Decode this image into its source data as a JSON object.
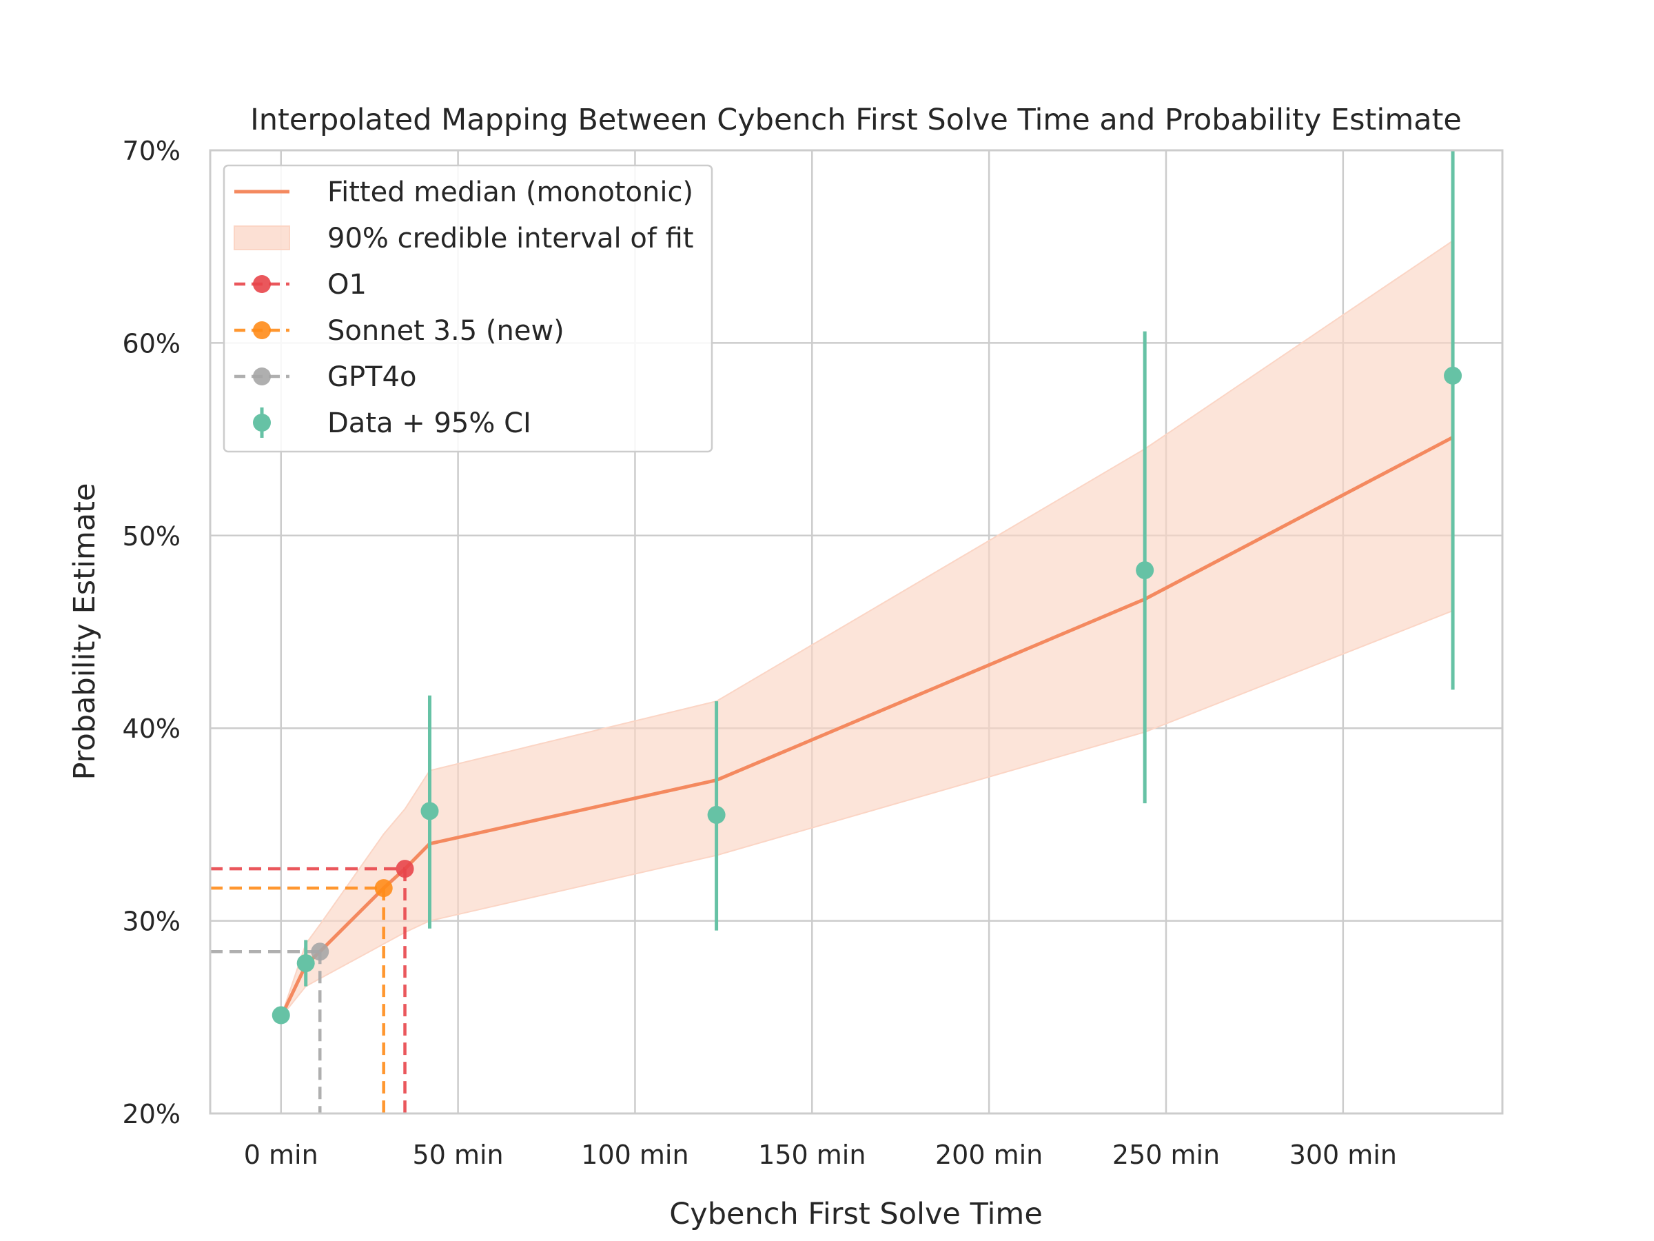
{
  "chart_data": {
    "type": "line",
    "title": "Interpolated Mapping Between Cybench First Solve Time and Probability Estimate",
    "xlabel": "Cybench First Solve Time",
    "ylabel": "Probability Estimate",
    "xlim": [
      -20,
      345
    ],
    "ylim": [
      0.2,
      0.7
    ],
    "x_ticks": [
      0,
      50,
      100,
      150,
      200,
      250,
      300
    ],
    "x_tick_labels": [
      "0 min",
      "50 min",
      "100 min",
      "150 min",
      "200 min",
      "250 min",
      "300 min"
    ],
    "y_ticks": [
      0.2,
      0.3,
      0.4,
      0.5,
      0.6,
      0.7
    ],
    "y_tick_labels": [
      "20%",
      "30%",
      "40%",
      "50%",
      "60%",
      "70%"
    ],
    "grid": true,
    "legend_position": "top-left",
    "legend": [
      {
        "label": "Fitted median (monotonic)",
        "kind": "line",
        "color": "#f4895f"
      },
      {
        "label": "90% credible interval of fit",
        "kind": "band",
        "color": "#f4895f"
      },
      {
        "label": "O1",
        "kind": "dashed-marker",
        "color": "#e8454a"
      },
      {
        "label": "Sonnet 3.5 (new)",
        "kind": "dashed-marker",
        "color": "#ff8c1a"
      },
      {
        "label": "GPT4o",
        "kind": "dashed-marker",
        "color": "#a6a6a6"
      },
      {
        "label": "Data + 95% CI",
        "kind": "errorbar",
        "color": "#66c2a5"
      }
    ],
    "fitted_median": {
      "x": [
        0,
        7,
        11,
        29,
        35,
        42,
        123,
        244,
        331
      ],
      "y": [
        0.25,
        0.277,
        0.284,
        0.317,
        0.327,
        0.34,
        0.373,
        0.467,
        0.551
      ]
    },
    "credible_interval": {
      "x": [
        0,
        7,
        11,
        29,
        35,
        42,
        123,
        244,
        331
      ],
      "lower": [
        0.25,
        0.266,
        0.27,
        0.288,
        0.294,
        0.3,
        0.334,
        0.398,
        0.461
      ],
      "upper": [
        0.25,
        0.288,
        0.298,
        0.345,
        0.358,
        0.378,
        0.414,
        0.545,
        0.653
      ]
    },
    "data_points": {
      "x": [
        0,
        7,
        42,
        123,
        244,
        331
      ],
      "y": [
        0.251,
        0.278,
        0.357,
        0.355,
        0.482,
        0.583
      ],
      "ci_lower": [
        0.251,
        0.266,
        0.296,
        0.295,
        0.361,
        0.42
      ],
      "ci_upper": [
        0.251,
        0.29,
        0.417,
        0.414,
        0.606,
        0.72
      ]
    },
    "models": [
      {
        "name": "O1",
        "x": 35,
        "y": 0.327,
        "color": "#e8454a"
      },
      {
        "name": "Sonnet 3.5 (new)",
        "x": 29,
        "y": 0.317,
        "color": "#ff8c1a"
      },
      {
        "name": "GPT4o",
        "x": 11,
        "y": 0.284,
        "color": "#a6a6a6"
      }
    ],
    "colors": {
      "median": "#f4895f",
      "band": "#fbd5c5",
      "data": "#66c2a5",
      "grid": "#cccccc",
      "axes": "#cccccc"
    }
  }
}
